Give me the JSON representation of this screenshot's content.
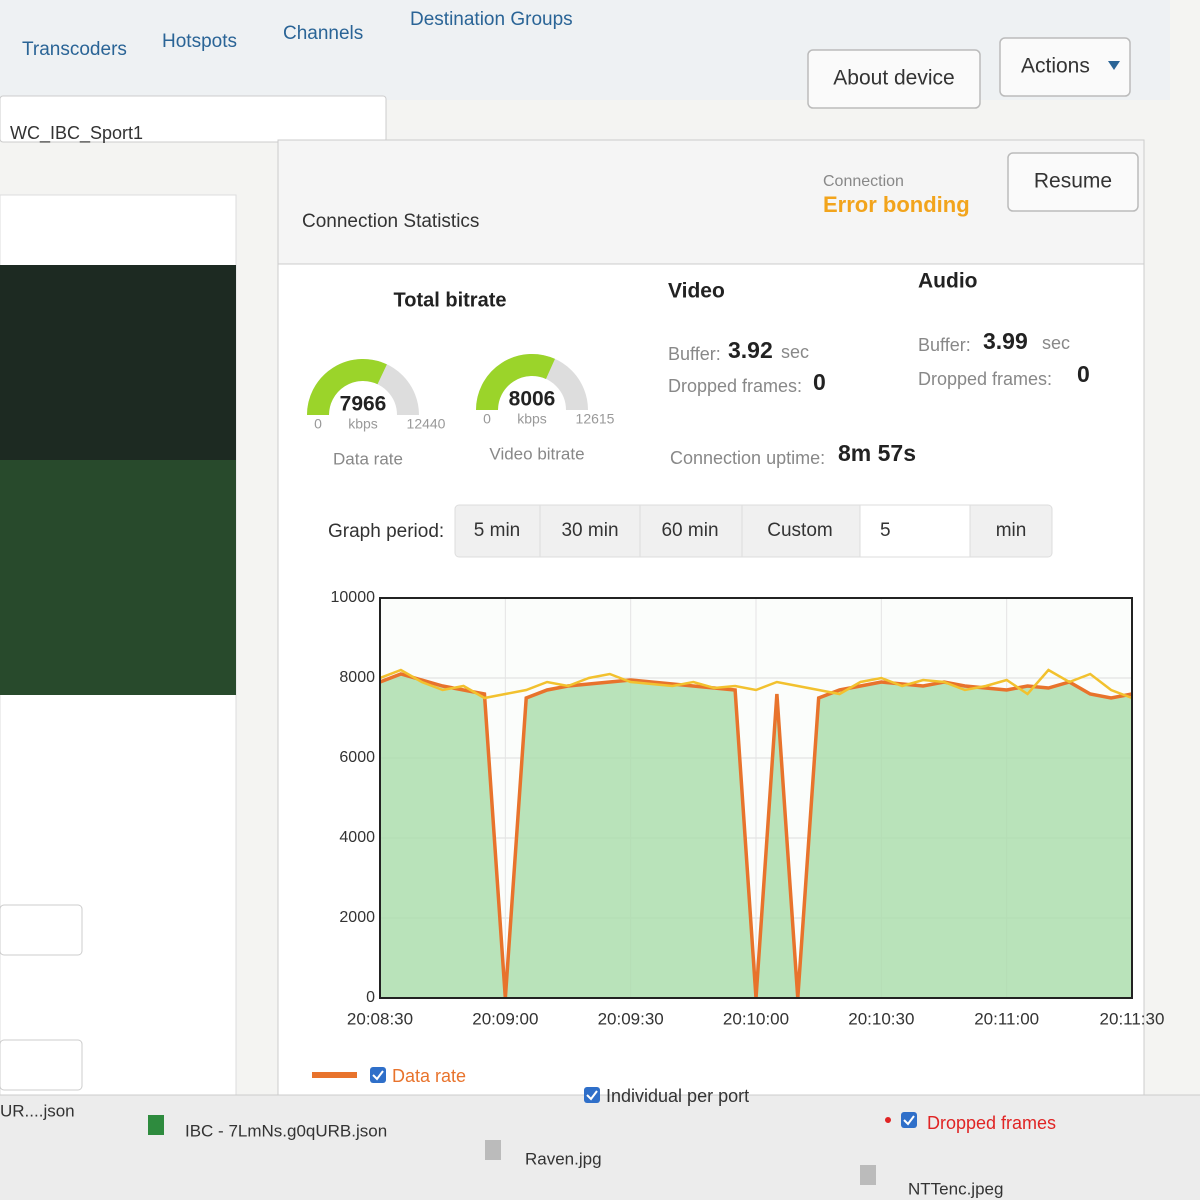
{
  "nav": {
    "tabs": [
      "Transcoders",
      "Hotspots",
      "Channels",
      "Destination Groups"
    ],
    "buttons": [
      "About device",
      "Actions"
    ]
  },
  "device_name": "WC_IBC_Sport1",
  "panel": {
    "title": "Connection Statistics",
    "status_label": "Connection",
    "status": "Error bonding",
    "button": "Resume"
  },
  "total_bitrate": {
    "title": "Total bitrate",
    "gauges": [
      {
        "value": 7966,
        "min": 0,
        "max": 12440,
        "unit": "kbps",
        "label": "Data rate"
      },
      {
        "value": 8006,
        "min": 0,
        "max": 12615,
        "unit": "kbps",
        "label": "Video bitrate"
      }
    ]
  },
  "video": {
    "title": "Video",
    "buffer_label": "Buffer:",
    "buffer": 3.92,
    "buffer_unit": "sec",
    "dropped_label": "Dropped frames:",
    "dropped": 0
  },
  "audio": {
    "title": "Audio",
    "buffer_label": "Buffer:",
    "buffer": 3.99,
    "buffer_unit": "sec",
    "dropped_label": "Dropped frames:",
    "dropped": 0
  },
  "uptime": {
    "label": "Connection uptime:",
    "value": "8m 57s"
  },
  "graph_period": {
    "label": "Graph period:",
    "options": [
      "5 min",
      "30 min",
      "60 min",
      "Custom"
    ],
    "custom_value": "5",
    "custom_unit": "min"
  },
  "chart_data": {
    "type": "line",
    "categories": [
      "20:08:30",
      null,
      null,
      null,
      null,
      null,
      "20:09:00",
      null,
      null,
      null,
      null,
      null,
      "20:09:30",
      null,
      null,
      null,
      null,
      null,
      "20:10:00",
      null,
      null,
      null,
      null,
      null,
      "20:10:30",
      null,
      null,
      null,
      null,
      null,
      "20:11:00",
      null,
      null,
      null,
      null,
      null,
      "20:11:30"
    ],
    "series": [
      {
        "name": "Data rate",
        "color": "#e8732c",
        "area_color": "#a9dcaa",
        "values": [
          7900,
          8100,
          7950,
          7800,
          7700,
          7600,
          0,
          7500,
          7700,
          7800,
          7850,
          7900,
          7950,
          7900,
          7850,
          7800,
          7750,
          7700,
          0,
          7600,
          0,
          7500,
          7700,
          7800,
          7900,
          7850,
          7800,
          7900,
          7800,
          7750,
          7700,
          7800,
          7750,
          7900,
          7600,
          7500,
          7600
        ]
      },
      {
        "name": "Individual per port",
        "color": "#f2c12e",
        "values": [
          8000,
          8200,
          7900,
          7700,
          7800,
          7500,
          7600,
          7700,
          7900,
          7800,
          8000,
          8100,
          7900,
          7850,
          7800,
          7900,
          7750,
          7800,
          7700,
          7900,
          7800,
          7700,
          7600,
          7900,
          8000,
          7800,
          7950,
          7900,
          7700,
          7800,
          7950,
          7600,
          8200,
          7900,
          8100,
          7700,
          7500
        ]
      }
    ],
    "dropped_frames": {
      "label": "Dropped frames",
      "color": "#e02424"
    },
    "ylim": [
      0,
      10000
    ],
    "yticks": [
      0,
      2000,
      4000,
      6000,
      8000,
      10000
    ],
    "grid": true
  },
  "downloads": [
    "UR....json",
    "IBC - 7LmNs.g0qURB.json",
    "Raven.jpg",
    "NTTenc.jpeg"
  ]
}
